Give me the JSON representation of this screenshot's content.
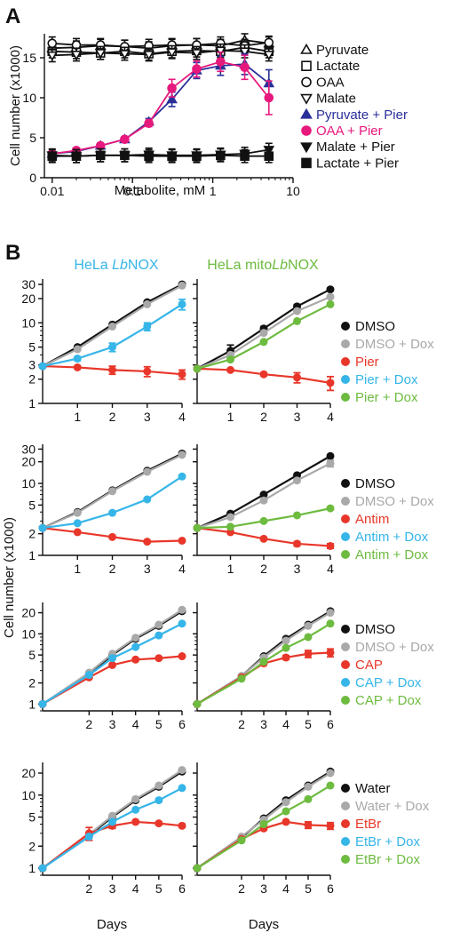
{
  "colors": {
    "black": "#111111",
    "gray": "#a9a9a9",
    "red": "#e8372a",
    "cyan": "#35b5e8",
    "green": "#6dbb3f",
    "navy": "#2a2f9a",
    "magenta": "#e6197d"
  },
  "panel_a": {
    "letter": "A",
    "ylabel": "Cell number (x1000)",
    "xlabel": "Metabolite, mM",
    "xticks": [
      "0.01",
      "0.1",
      "1",
      "10"
    ],
    "yticks": [
      "0",
      "5",
      "10",
      "15"
    ],
    "legend": [
      {
        "label": "Pyruvate",
        "marker": "triangle-up-open",
        "color": "black"
      },
      {
        "label": "Lactate",
        "marker": "square-open",
        "color": "black"
      },
      {
        "label": "OAA",
        "marker": "circle-open",
        "color": "black"
      },
      {
        "label": "Malate",
        "marker": "triangle-down-open",
        "color": "black"
      },
      {
        "label": "Pyruvate + Pier",
        "marker": "triangle-up-filled",
        "color": "navy"
      },
      {
        "label": "OAA + Pier",
        "marker": "circle-filled",
        "color": "magenta"
      },
      {
        "label": "Malate + Pier",
        "marker": "triangle-down-filled",
        "color": "black"
      },
      {
        "label": "Lactate + Pier",
        "marker": "square-filled",
        "color": "black"
      }
    ]
  },
  "panel_b": {
    "letter": "B",
    "ylabel": "Cell number (x1000)",
    "xlabel": "Days",
    "col_titles": [
      {
        "pre": "HeLa ",
        "italic": "Lb",
        "post": "NOX",
        "color": "cyan"
      },
      {
        "pre": "HeLa mito",
        "italic": "Lb",
        "post": "NOX",
        "color": "green"
      }
    ],
    "legends": [
      [
        {
          "label": "DMSO",
          "color": "black"
        },
        {
          "label": "DMSO + Dox",
          "color": "gray"
        },
        {
          "label": "Pier",
          "color": "red"
        },
        {
          "label": "Pier + Dox",
          "color": "cyan"
        },
        {
          "label": "Pier + Dox",
          "color": "green"
        }
      ],
      [
        {
          "label": "DMSO",
          "color": "black"
        },
        {
          "label": "DMSO + Dox",
          "color": "gray"
        },
        {
          "label": "Antim",
          "color": "red"
        },
        {
          "label": "Antim + Dox",
          "color": "cyan"
        },
        {
          "label": "Antim + Dox",
          "color": "green"
        }
      ],
      [
        {
          "label": "DMSO",
          "color": "black"
        },
        {
          "label": "DMSO + Dox",
          "color": "gray"
        },
        {
          "label": "CAP",
          "color": "red"
        },
        {
          "label": "CAP + Dox",
          "color": "cyan"
        },
        {
          "label": "CAP + Dox",
          "color": "green"
        }
      ],
      [
        {
          "label": "Water",
          "color": "black"
        },
        {
          "label": "Water + Dox",
          "color": "gray"
        },
        {
          "label": "EtBr",
          "color": "red"
        },
        {
          "label": "EtBr + Dox",
          "color": "cyan"
        },
        {
          "label": "EtBr + Dox",
          "color": "green"
        }
      ]
    ]
  },
  "chart_data": [
    {
      "type": "scatter",
      "panel": "A",
      "xlabel": "Metabolite, mM",
      "ylabel": "Cell number (x1000)",
      "xscale": "log",
      "xlim": [
        0.008,
        10
      ],
      "ylim": [
        0,
        18
      ],
      "x": [
        0.01,
        0.02,
        0.04,
        0.08,
        0.16,
        0.31,
        0.63,
        1.25,
        2.5,
        5
      ],
      "series": [
        {
          "name": "Pyruvate",
          "color": "black",
          "marker": "triangle-up-open",
          "values": [
            16.2,
            16.3,
            16.5,
            16.4,
            16.2,
            16.5,
            16.6,
            16.5,
            17.2,
            16.8
          ]
        },
        {
          "name": "Lactate",
          "color": "black",
          "marker": "square-open",
          "values": [
            15.8,
            15.7,
            15.6,
            15.8,
            15.5,
            15.8,
            15.9,
            15.8,
            16.3,
            15.8
          ]
        },
        {
          "name": "OAA",
          "color": "black",
          "marker": "circle-open",
          "values": [
            16.8,
            16.6,
            16.6,
            16.4,
            16.5,
            16.6,
            16.6,
            16.8,
            16.5,
            16.9
          ]
        },
        {
          "name": "Malate",
          "color": "black",
          "marker": "triangle-down-open",
          "values": [
            15.3,
            15.4,
            15.6,
            15.5,
            15.4,
            15.7,
            15.6,
            15.9,
            15.8,
            15.4
          ]
        },
        {
          "name": "Pyruvate + Pier",
          "color": "navy",
          "marker": "triangle-up-filled",
          "values": [
            3.0,
            3.3,
            4.0,
            4.8,
            7.0,
            9.8,
            13.4,
            14.0,
            14.2,
            11.8
          ],
          "err": [
            0.2,
            0.2,
            0.2,
            0.3,
            0.4,
            0.9,
            1.0,
            1.2,
            1.3,
            1.7
          ]
        },
        {
          "name": "OAA + Pier",
          "color": "magenta",
          "marker": "circle-filled",
          "values": [
            3.0,
            3.4,
            4.0,
            4.8,
            6.8,
            11.2,
            13.6,
            14.5,
            13.8,
            10.0
          ],
          "err": [
            0.2,
            0.2,
            0.2,
            0.3,
            0.4,
            1.1,
            1.0,
            1.2,
            1.5,
            2.1
          ]
        },
        {
          "name": "Malate + Pier",
          "color": "black",
          "marker": "triangle-down-filled",
          "values": [
            2.8,
            2.7,
            2.8,
            2.8,
            2.9,
            2.8,
            2.8,
            2.9,
            3.0,
            3.5
          ]
        },
        {
          "name": "Lactate + Pier",
          "color": "black",
          "marker": "square-filled",
          "values": [
            2.7,
            2.7,
            2.8,
            2.8,
            2.7,
            2.7,
            2.7,
            2.8,
            2.7,
            2.7
          ]
        }
      ]
    },
    {
      "type": "line",
      "panel": "B",
      "row": 1,
      "column": "HeLa LbNOX",
      "yscale": "log",
      "x": [
        0,
        1,
        2,
        3,
        4
      ],
      "xticks": [
        "1",
        "2",
        "3",
        "4"
      ],
      "yticks": [
        "1",
        "2",
        "3",
        "5",
        "10",
        "20",
        "30"
      ],
      "ylim": [
        1,
        35
      ],
      "series": [
        {
          "name": "DMSO",
          "color": "black",
          "values": [
            2.9,
            5.0,
            9.5,
            18.0,
            30.0
          ]
        },
        {
          "name": "DMSO + Dox",
          "color": "gray",
          "values": [
            2.9,
            4.7,
            9.0,
            17.0,
            29.0
          ]
        },
        {
          "name": "Pier",
          "color": "red",
          "values": [
            2.9,
            2.8,
            2.6,
            2.5,
            2.3
          ],
          "err": [
            0.05,
            0.1,
            0.3,
            0.35,
            0.3
          ]
        },
        {
          "name": "Pier + Dox",
          "color": "cyan",
          "values": [
            2.9,
            3.6,
            5.0,
            9.0,
            17.0
          ],
          "err": [
            0.05,
            0.2,
            0.6,
            1.0,
            2.5
          ]
        }
      ]
    },
    {
      "type": "line",
      "panel": "B",
      "row": 1,
      "column": "HeLa mitoLbNOX",
      "yscale": "log",
      "x": [
        0,
        1,
        2,
        3,
        4
      ],
      "xticks": [
        "1",
        "2",
        "3",
        "4"
      ],
      "yticks": [
        "1",
        "2",
        "3",
        "5",
        "10",
        "20",
        "30"
      ],
      "ylim": [
        1,
        35
      ],
      "series": [
        {
          "name": "DMSO",
          "color": "black",
          "values": [
            2.7,
            4.5,
            8.5,
            16.0,
            26.0
          ],
          "err": [
            0.05,
            0.8,
            0.5,
            0.8,
            1.0
          ]
        },
        {
          "name": "DMSO + Dox",
          "color": "gray",
          "values": [
            2.7,
            4.0,
            7.5,
            14.0,
            21.0
          ]
        },
        {
          "name": "Pier",
          "color": "red",
          "values": [
            2.7,
            2.6,
            2.3,
            2.1,
            1.8
          ],
          "err": [
            0.05,
            0.1,
            0.1,
            0.3,
            0.35
          ]
        },
        {
          "name": "Pier + Dox",
          "color": "green",
          "values": [
            2.7,
            3.5,
            5.8,
            10.5,
            17.0
          ]
        }
      ]
    },
    {
      "type": "line",
      "panel": "B",
      "row": 2,
      "column": "HeLa LbNOX",
      "yscale": "log",
      "x": [
        0,
        1,
        2,
        3,
        4
      ],
      "xticks": [
        "1",
        "2",
        "3",
        "4"
      ],
      "yticks": [
        "1",
        "2",
        "5",
        "10",
        "20",
        "30"
      ],
      "ylim": [
        1,
        35
      ],
      "series": [
        {
          "name": "DMSO",
          "color": "black",
          "values": [
            2.4,
            4.0,
            8.0,
            15.0,
            26.0
          ]
        },
        {
          "name": "DMSO + Dox",
          "color": "gray",
          "values": [
            2.4,
            3.9,
            7.8,
            14.5,
            25.0
          ]
        },
        {
          "name": "Antim",
          "color": "red",
          "values": [
            2.4,
            2.1,
            1.8,
            1.55,
            1.6
          ]
        },
        {
          "name": "Antim + Dox",
          "color": "cyan",
          "values": [
            2.4,
            2.8,
            3.9,
            6.0,
            12.5
          ]
        }
      ]
    },
    {
      "type": "line",
      "panel": "B",
      "row": 2,
      "column": "HeLa mitoLbNOX",
      "yscale": "log",
      "x": [
        0,
        1,
        2,
        3,
        4
      ],
      "xticks": [
        "1",
        "2",
        "3",
        "4"
      ],
      "yticks": [
        "1",
        "2",
        "5",
        "10",
        "20",
        "30"
      ],
      "ylim": [
        1,
        35
      ],
      "series": [
        {
          "name": "DMSO",
          "color": "black",
          "values": [
            2.4,
            3.8,
            7.0,
            13.0,
            24.0
          ]
        },
        {
          "name": "DMSO + Dox",
          "color": "gray",
          "values": [
            2.4,
            3.4,
            5.8,
            11.0,
            19.0
          ],
          "err": [
            0.05,
            0.1,
            0.3,
            0.5,
            2.0
          ]
        },
        {
          "name": "Antim",
          "color": "red",
          "values": [
            2.4,
            2.1,
            1.7,
            1.45,
            1.35
          ],
          "err": [
            0.05,
            0.05,
            0.05,
            0.1,
            0.1
          ]
        },
        {
          "name": "Antim + Dox",
          "color": "green",
          "values": [
            2.4,
            2.5,
            3.0,
            3.6,
            4.5
          ]
        }
      ]
    },
    {
      "type": "line",
      "panel": "B",
      "row": 3,
      "column": "HeLa LbNOX",
      "yscale": "log",
      "x": [
        0,
        2,
        3,
        4,
        5,
        6
      ],
      "xticks": [
        "2",
        "3",
        "4",
        "5",
        "6"
      ],
      "yticks": [
        "1",
        "2",
        "5",
        "10",
        "20"
      ],
      "ylim": [
        0.8,
        28
      ],
      "series": [
        {
          "name": "DMSO",
          "color": "black",
          "values": [
            1.0,
            2.7,
            5.0,
            8.5,
            13.0,
            21.0
          ]
        },
        {
          "name": "DMSO + Dox",
          "color": "gray",
          "values": [
            1.0,
            2.8,
            5.2,
            8.8,
            13.5,
            22.0
          ]
        },
        {
          "name": "CAP",
          "color": "red",
          "values": [
            1.0,
            2.4,
            3.6,
            4.3,
            4.5,
            4.8
          ]
        },
        {
          "name": "CAP + Dox",
          "color": "cyan",
          "values": [
            1.0,
            2.6,
            4.5,
            6.5,
            9.5,
            14.0
          ]
        }
      ]
    },
    {
      "type": "line",
      "panel": "B",
      "row": 3,
      "column": "HeLa mitoLbNOX",
      "yscale": "log",
      "x": [
        0,
        2,
        3,
        4,
        5,
        6
      ],
      "xticks": [
        "2",
        "3",
        "4",
        "5",
        "6"
      ],
      "yticks": [
        "1",
        "2",
        "5",
        "10",
        "20"
      ],
      "ylim": [
        0.8,
        28
      ],
      "series": [
        {
          "name": "DMSO",
          "color": "black",
          "values": [
            1.0,
            2.5,
            4.8,
            8.5,
            13.5,
            21.0
          ]
        },
        {
          "name": "DMSO + Dox",
          "color": "gray",
          "values": [
            1.0,
            2.5,
            4.6,
            8.0,
            13.0,
            20.0
          ]
        },
        {
          "name": "CAP",
          "color": "red",
          "values": [
            1.0,
            2.4,
            3.8,
            4.6,
            5.2,
            5.4
          ],
          "err": [
            0.03,
            0.1,
            0.2,
            0.3,
            0.6,
            0.7
          ]
        },
        {
          "name": "CAP + Dox",
          "color": "green",
          "values": [
            1.0,
            2.3,
            4.0,
            6.3,
            9.0,
            14.0
          ]
        }
      ]
    },
    {
      "type": "line",
      "panel": "B",
      "row": 4,
      "column": "HeLa LbNOX",
      "yscale": "log",
      "x": [
        0,
        2,
        3,
        4,
        5,
        6
      ],
      "xticks": [
        "2",
        "3",
        "4",
        "5",
        "6"
      ],
      "yticks": [
        "1",
        "2",
        "5",
        "10",
        "20"
      ],
      "ylim": [
        0.8,
        28
      ],
      "series": [
        {
          "name": "Water",
          "color": "black",
          "values": [
            1.0,
            2.8,
            5.0,
            8.5,
            13.0,
            21.0
          ]
        },
        {
          "name": "Water + Dox",
          "color": "gray",
          "values": [
            1.0,
            2.9,
            5.2,
            8.8,
            13.5,
            22.0
          ]
        },
        {
          "name": "EtBr",
          "color": "red",
          "values": [
            1.0,
            3.0,
            3.8,
            4.3,
            4.1,
            3.8
          ],
          "err": [
            0.03,
            0.6,
            0.3,
            0.2,
            0.2,
            0.2
          ]
        },
        {
          "name": "EtBr + Dox",
          "color": "cyan",
          "values": [
            1.0,
            2.7,
            4.3,
            6.3,
            8.5,
            12.5
          ]
        }
      ]
    },
    {
      "type": "line",
      "panel": "B",
      "row": 4,
      "column": "HeLa mitoLbNOX",
      "yscale": "log",
      "x": [
        0,
        2,
        3,
        4,
        5,
        6
      ],
      "xticks": [
        "2",
        "3",
        "4",
        "5",
        "6"
      ],
      "yticks": [
        "1",
        "2",
        "5",
        "10",
        "20"
      ],
      "ylim": [
        0.8,
        28
      ],
      "series": [
        {
          "name": "Water",
          "color": "black",
          "values": [
            1.0,
            2.6,
            4.8,
            8.5,
            13.5,
            21.0
          ]
        },
        {
          "name": "Water + Dox",
          "color": "gray",
          "values": [
            1.0,
            2.7,
            4.6,
            8.0,
            13.0,
            20.0
          ]
        },
        {
          "name": "EtBr",
          "color": "red",
          "values": [
            1.0,
            2.5,
            3.5,
            4.3,
            3.9,
            3.8
          ],
          "err": [
            0.03,
            0.1,
            0.2,
            0.2,
            0.4,
            0.4
          ]
        },
        {
          "name": "EtBr + Dox",
          "color": "green",
          "values": [
            1.0,
            2.4,
            4.0,
            6.0,
            8.8,
            13.5
          ]
        }
      ]
    }
  ]
}
